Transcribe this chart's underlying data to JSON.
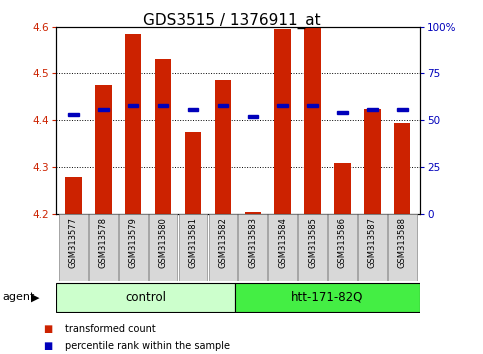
{
  "title": "GDS3515 / 1376911_at",
  "samples": [
    "GSM313577",
    "GSM313578",
    "GSM313579",
    "GSM313580",
    "GSM313581",
    "GSM313582",
    "GSM313583",
    "GSM313584",
    "GSM313585",
    "GSM313586",
    "GSM313587",
    "GSM313588"
  ],
  "bar_values": [
    4.28,
    4.475,
    4.585,
    4.53,
    4.375,
    4.485,
    4.205,
    4.595,
    4.6,
    4.31,
    4.425,
    4.395
  ],
  "blue_pct": [
    53,
    56,
    58,
    58,
    56,
    58,
    52,
    58,
    58,
    54,
    56,
    56
  ],
  "ymin": 4.2,
  "ymax": 4.6,
  "yticks": [
    4.2,
    4.3,
    4.4,
    4.5,
    4.6
  ],
  "right_yticks_pct": [
    0,
    25,
    50,
    75,
    100
  ],
  "right_yticklabels": [
    "0",
    "25",
    "50",
    "75",
    "100%"
  ],
  "bar_color": "#cc2200",
  "blue_color": "#0000bb",
  "bar_width": 0.55,
  "group1_label": "control",
  "group2_label": "htt-171-82Q",
  "group1_color": "#ccffcc",
  "group2_color": "#44ee44",
  "agent_label": "agent",
  "legend_bar_label": "transformed count",
  "legend_blue_label": "percentile rank within the sample",
  "left_tick_color": "#cc2200",
  "right_tick_color": "#0000bb",
  "title_fontsize": 11,
  "tick_fontsize": 7.5,
  "label_fontsize": 8,
  "sample_fontsize": 6,
  "group_fontsize": 8.5
}
